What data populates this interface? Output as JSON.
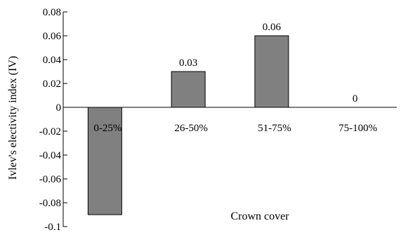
{
  "chart_data": {
    "type": "bar",
    "categories": [
      "0-25%",
      "26-50%",
      "51-75%",
      "75-100%"
    ],
    "values": [
      -0.09,
      0.03,
      0.06,
      0
    ],
    "data_labels": [
      "",
      "0.03",
      "0.06",
      "0"
    ],
    "title": "",
    "xlabel": "Crown cover",
    "ylabel": "Ivlev's electivity index (IV)",
    "ylim": [
      -0.1,
      0.08
    ],
    "yticks": [
      0.08,
      0.06,
      0.04,
      0.02,
      0,
      -0.02,
      -0.04,
      -0.06,
      -0.08,
      -0.1
    ],
    "ytick_labels": [
      "0.08",
      "0.06",
      "0.04",
      "0.02",
      "0",
      "-0.02",
      "-0.04",
      "-0.06",
      "-0.08",
      "-0.1"
    ],
    "grid": false,
    "legend": "none",
    "bar_color": "#808080"
  }
}
